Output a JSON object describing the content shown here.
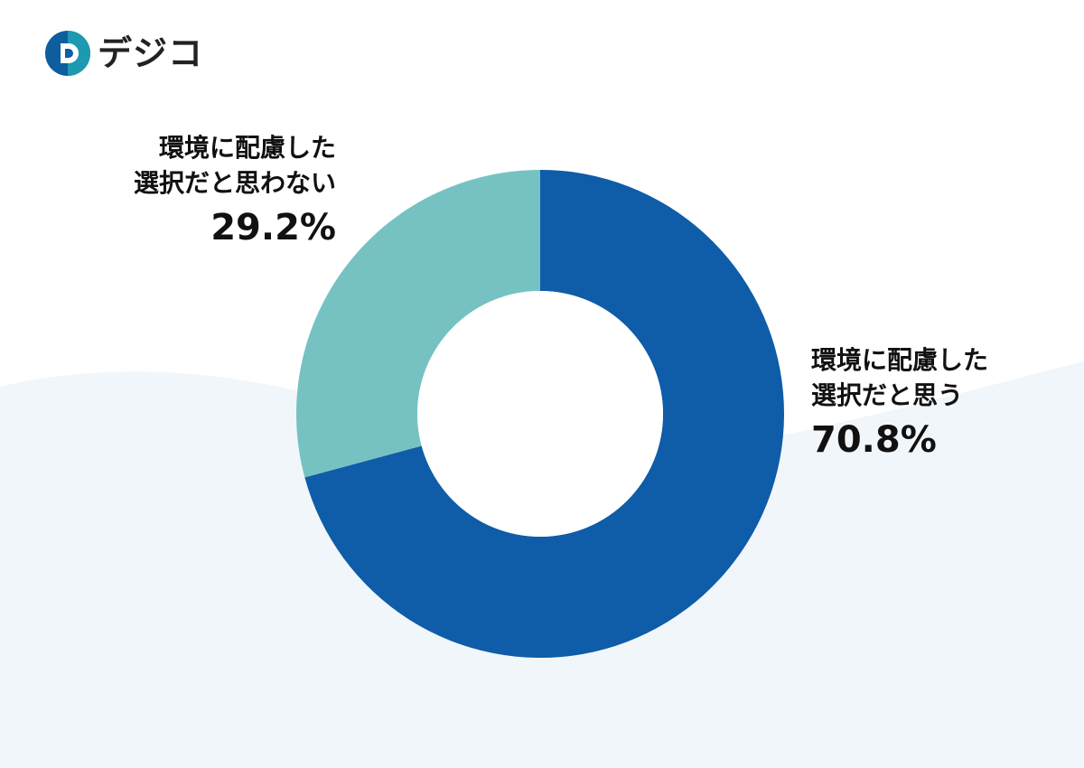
{
  "brand": {
    "logo_text": "デジコ",
    "colors": {
      "accent": "#0f5ca8",
      "teal": "#21a3b5",
      "logo_dark": "#0e5d9f"
    }
  },
  "background": {
    "wave_color": "#f1f6fa"
  },
  "chart_data": {
    "type": "pie",
    "donut": true,
    "start_angle_deg": 0,
    "direction": "clockwise",
    "slices": [
      {
        "label_lines": [
          "環境に配慮した",
          "選択だと思う"
        ],
        "value": 70.8,
        "value_label": "70.8%",
        "color": "#0f5ca8"
      },
      {
        "label_lines": [
          "環境に配慮した",
          "選択だと思わない"
        ],
        "value": 29.2,
        "value_label": "29.2%",
        "color": "#76c2c2"
      }
    ]
  }
}
